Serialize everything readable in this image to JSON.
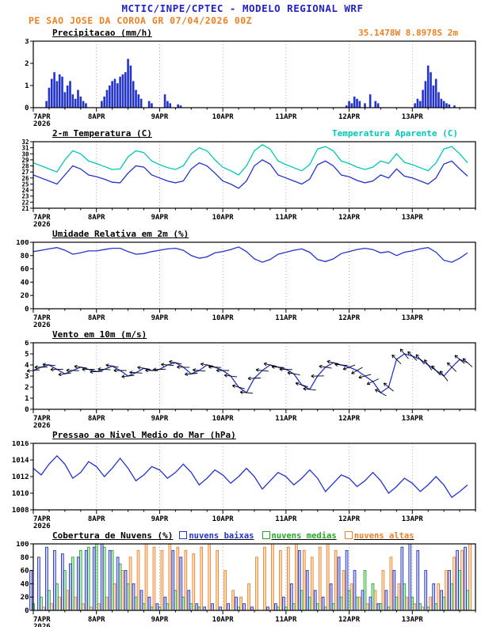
{
  "header": {
    "title": "MCTIC/INPE/CPTEC - MODELO REGIONAL WRF",
    "subtitle": "PE SAO JOSE DA COROA GR  07/04/2026 00Z"
  },
  "colors": {
    "header_blue": "#2222cc",
    "orange": "#ee8022",
    "blue": "#2233cc",
    "cyan": "#00c8b4",
    "green": "#22aa22",
    "black": "#000000"
  },
  "x_axis": {
    "domain": [
      0,
      168
    ],
    "tick_hours": [
      0,
      24,
      48,
      72,
      96,
      120,
      144
    ],
    "tick_labels": [
      "7APR",
      "8APR",
      "9APR",
      "10APR",
      "11APR",
      "12APR",
      "13APR"
    ],
    "year_label": "2026"
  },
  "chart_data": [
    {
      "id": "precip",
      "type": "bar",
      "title": "Precipitacao (mm/h)",
      "coords_label": "35.1478W 8.8978S 2m",
      "ylim": [
        0,
        3
      ],
      "yticks": [
        0,
        1,
        2,
        3
      ],
      "bars": [
        [
          5,
          0.3
        ],
        [
          6,
          0.9
        ],
        [
          7,
          1.3
        ],
        [
          8,
          1.6
        ],
        [
          9,
          1.2
        ],
        [
          10,
          1.5
        ],
        [
          11,
          1.4
        ],
        [
          12,
          0.7
        ],
        [
          13,
          1.0
        ],
        [
          14,
          1.2
        ],
        [
          15,
          0.6
        ],
        [
          16,
          0.4
        ],
        [
          17,
          0.8
        ],
        [
          18,
          0.5
        ],
        [
          19,
          0.3
        ],
        [
          20,
          0.2
        ],
        [
          26,
          0.3
        ],
        [
          27,
          0.5
        ],
        [
          28,
          0.8
        ],
        [
          29,
          1.0
        ],
        [
          30,
          1.2
        ],
        [
          31,
          1.3
        ],
        [
          32,
          1.1
        ],
        [
          33,
          1.4
        ],
        [
          34,
          1.5
        ],
        [
          35,
          1.6
        ],
        [
          36,
          2.2
        ],
        [
          37,
          1.9
        ],
        [
          38,
          1.2
        ],
        [
          39,
          0.8
        ],
        [
          40,
          0.6
        ],
        [
          41,
          0.4
        ],
        [
          44,
          0.3
        ],
        [
          45,
          0.2
        ],
        [
          50,
          0.6
        ],
        [
          51,
          0.3
        ],
        [
          52,
          0.2
        ],
        [
          55,
          0.15
        ],
        [
          56,
          0.1
        ],
        [
          119,
          0.1
        ],
        [
          120,
          0.3
        ],
        [
          121,
          0.2
        ],
        [
          122,
          0.5
        ],
        [
          123,
          0.4
        ],
        [
          124,
          0.3
        ],
        [
          126,
          0.2
        ],
        [
          128,
          0.6
        ],
        [
          130,
          0.3
        ],
        [
          131,
          0.2
        ],
        [
          145,
          0.2
        ],
        [
          146,
          0.4
        ],
        [
          147,
          0.3
        ],
        [
          148,
          0.8
        ],
        [
          149,
          1.2
        ],
        [
          150,
          1.9
        ],
        [
          151,
          1.6
        ],
        [
          152,
          1.0
        ],
        [
          153,
          1.3
        ],
        [
          154,
          0.7
        ],
        [
          155,
          0.4
        ],
        [
          156,
          0.3
        ],
        [
          157,
          0.2
        ],
        [
          158,
          0.15
        ],
        [
          160,
          0.1
        ]
      ]
    },
    {
      "id": "temp",
      "type": "line",
      "title": "2-m Temperatura (C)",
      "title2": "Temperatura Aparente (C)",
      "ylim": [
        21,
        32
      ],
      "yticks": [
        21,
        22,
        23,
        24,
        25,
        26,
        27,
        28,
        29,
        30,
        31,
        32
      ],
      "small_ticks": true,
      "step_hours": 3,
      "series": [
        {
          "name": "2-m Temperatura",
          "color_key": "blue",
          "values": [
            26.5,
            26.0,
            25.5,
            25.0,
            26.5,
            28.0,
            27.5,
            26.5,
            26.2,
            25.8,
            25.3,
            25.2,
            26.8,
            28.0,
            27.8,
            26.5,
            26.0,
            25.5,
            25.2,
            25.5,
            27.5,
            28.5,
            28.0,
            26.8,
            25.5,
            25.0,
            24.3,
            25.5,
            28.0,
            29.0,
            28.3,
            26.5,
            26.0,
            25.5,
            25.0,
            25.8,
            28.2,
            28.8,
            28.0,
            26.5,
            26.2,
            25.6,
            25.2,
            25.5,
            26.5,
            26.0,
            27.5,
            26.3,
            26.0,
            25.5,
            25.0,
            26.0,
            28.3,
            28.8,
            27.5,
            26.3
          ]
        },
        {
          "name": "Temperatura Aparente",
          "color_key": "cyan",
          "values": [
            28.5,
            28.0,
            27.5,
            27.0,
            29.0,
            30.5,
            30.0,
            28.8,
            28.4,
            27.9,
            27.4,
            27.5,
            29.5,
            30.5,
            30.2,
            28.8,
            28.2,
            27.7,
            27.4,
            28.0,
            30.0,
            31.0,
            30.5,
            29.0,
            27.8,
            27.2,
            26.5,
            28.0,
            30.5,
            31.5,
            30.8,
            28.8,
            28.2,
            27.7,
            27.2,
            28.2,
            30.8,
            31.2,
            30.5,
            28.8,
            28.4,
            27.8,
            27.4,
            27.8,
            28.8,
            28.4,
            30.0,
            28.6,
            28.2,
            27.7,
            27.2,
            28.5,
            30.8,
            31.2,
            30.0,
            28.5
          ]
        }
      ]
    },
    {
      "id": "humidity",
      "type": "line",
      "title": "Umidade Relativa em 2m (%)",
      "ylim": [
        0,
        100
      ],
      "yticks": [
        0,
        20,
        40,
        60,
        80,
        100
      ],
      "step_hours": 3,
      "series": [
        {
          "name": "Umidade Relativa",
          "color_key": "blue",
          "values": [
            86,
            88,
            90,
            92,
            88,
            82,
            84,
            87,
            87,
            89,
            91,
            91,
            86,
            82,
            83,
            86,
            88,
            90,
            91,
            88,
            80,
            76,
            78,
            84,
            86,
            89,
            93,
            86,
            75,
            70,
            74,
            82,
            85,
            88,
            90,
            85,
            74,
            71,
            75,
            83,
            86,
            89,
            91,
            89,
            84,
            86,
            80,
            85,
            87,
            90,
            92,
            85,
            73,
            70,
            76,
            84
          ]
        }
      ]
    },
    {
      "id": "wind",
      "type": "wind",
      "title": "Vento em 10m (m/s)",
      "ylim": [
        0,
        6
      ],
      "yticks": [
        0,
        1,
        2,
        3,
        4,
        5,
        6
      ],
      "step_hours": 3,
      "series": [
        {
          "name": "Vento 10m",
          "color_key": "blue",
          "values": [
            3.5,
            3.8,
            4.0,
            3.6,
            3.2,
            3.5,
            3.8,
            3.6,
            3.4,
            3.6,
            3.9,
            3.5,
            3.0,
            3.3,
            3.7,
            3.5,
            3.6,
            4.0,
            4.2,
            3.8,
            3.2,
            3.5,
            4.0,
            3.8,
            3.5,
            3.0,
            2.0,
            1.5,
            2.8,
            3.5,
            4.0,
            3.8,
            3.6,
            3.2,
            2.2,
            1.8,
            3.0,
            3.8,
            4.2,
            4.0,
            3.8,
            3.5,
            3.0,
            2.5,
            1.5,
            2.0,
            4.5,
            5.0,
            4.8,
            4.5,
            4.0,
            3.5,
            3.0,
            3.8,
            4.5,
            4.2
          ]
        }
      ],
      "dirs_deg": [
        185,
        180,
        175,
        182,
        188,
        178,
        172,
        180,
        183,
        177,
        170,
        180,
        186,
        176,
        171,
        179,
        182,
        175,
        168,
        178,
        185,
        174,
        170,
        177,
        180,
        172,
        165,
        175,
        183,
        173,
        168,
        176,
        178,
        170,
        163,
        174,
        181,
        171,
        166,
        175,
        200,
        210,
        195,
        205,
        150,
        140,
        135,
        130,
        135,
        130,
        125,
        132,
        128,
        135,
        140,
        138
      ]
    },
    {
      "id": "pressure",
      "type": "line",
      "title": "Pressao ao Nivel Medio do Mar (hPa)",
      "ylim": [
        1008,
        1016
      ],
      "yticks": [
        1008,
        1010,
        1012,
        1014,
        1016
      ],
      "step_hours": 3,
      "series": [
        {
          "name": "Pressao",
          "color_key": "blue",
          "values": [
            1013.0,
            1012.2,
            1013.5,
            1014.5,
            1013.5,
            1011.8,
            1012.5,
            1013.8,
            1013.2,
            1012.0,
            1013.0,
            1014.2,
            1013.0,
            1011.5,
            1012.2,
            1013.2,
            1012.8,
            1011.8,
            1012.5,
            1013.5,
            1012.5,
            1011.0,
            1011.8,
            1012.8,
            1012.2,
            1011.2,
            1012.0,
            1013.0,
            1012.0,
            1010.5,
            1011.5,
            1012.5,
            1012.0,
            1011.0,
            1011.8,
            1012.8,
            1011.8,
            1010.2,
            1011.2,
            1012.2,
            1011.8,
            1010.8,
            1011.5,
            1012.5,
            1011.5,
            1010.0,
            1010.8,
            1011.8,
            1011.2,
            1010.2,
            1011.0,
            1012.0,
            1011.0,
            1009.5,
            1010.2,
            1011.0
          ]
        }
      ]
    },
    {
      "id": "clouds",
      "type": "cloudbar",
      "title": "Cobertura de Nuvens (%)",
      "ylim": [
        0,
        100
      ],
      "yticks": [
        0,
        20,
        40,
        60,
        80,
        100
      ],
      "step_hours": 3,
      "legend": [
        {
          "label": "nuvens baixas",
          "color_key": "blue"
        },
        {
          "label": "nuvens medias",
          "color_key": "green"
        },
        {
          "label": "nuvens altas",
          "color_key": "orange"
        }
      ],
      "series": [
        {
          "name": "nuvens altas",
          "color_key": "orange",
          "offset": 3,
          "values": [
            0,
            5,
            10,
            20,
            30,
            20,
            10,
            5,
            10,
            20,
            40,
            60,
            80,
            90,
            100,
            95,
            90,
            100,
            95,
            90,
            85,
            95,
            100,
            90,
            60,
            30,
            20,
            40,
            80,
            95,
            100,
            90,
            95,
            100,
            90,
            80,
            95,
            100,
            90,
            60,
            40,
            20,
            10,
            30,
            60,
            80,
            40,
            20,
            10,
            5,
            20,
            40,
            60,
            80,
            90,
            100
          ]
        },
        {
          "name": "nuvens medias",
          "color_key": "green",
          "offset": 0,
          "values": [
            10,
            20,
            30,
            40,
            60,
            80,
            90,
            95,
            100,
            95,
            90,
            70,
            40,
            20,
            10,
            5,
            5,
            10,
            30,
            20,
            10,
            5,
            0,
            0,
            0,
            0,
            5,
            0,
            0,
            0,
            0,
            5,
            5,
            10,
            30,
            20,
            10,
            5,
            10,
            20,
            30,
            20,
            60,
            40,
            10,
            5,
            20,
            40,
            20,
            10,
            5,
            10,
            20,
            40,
            60,
            30
          ]
        },
        {
          "name": "nuvens baixas",
          "color_key": "blue",
          "offset": -3,
          "values": [
            60,
            80,
            95,
            90,
            85,
            70,
            80,
            90,
            95,
            100,
            90,
            80,
            60,
            40,
            30,
            20,
            10,
            20,
            90,
            80,
            30,
            10,
            5,
            10,
            5,
            10,
            20,
            10,
            5,
            0,
            5,
            10,
            20,
            40,
            90,
            60,
            30,
            20,
            40,
            80,
            90,
            60,
            30,
            20,
            10,
            30,
            60,
            95,
            100,
            90,
            60,
            40,
            30,
            60,
            90,
            95
          ]
        }
      ]
    }
  ]
}
